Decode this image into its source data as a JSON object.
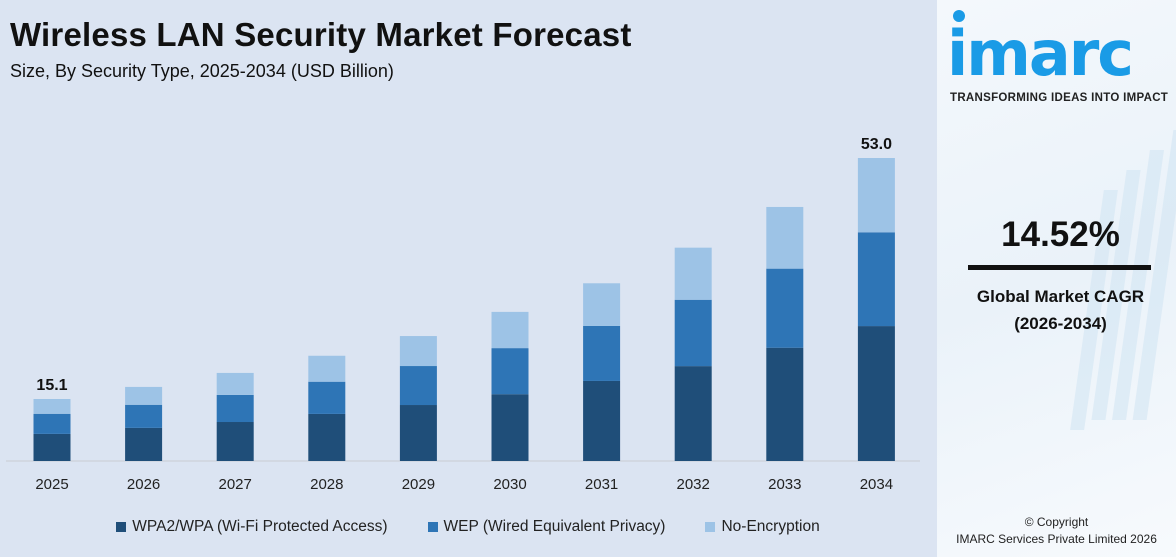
{
  "title": "Wireless LAN Security Market Forecast",
  "subtitle": "Size, By Security Type, 2025-2034 (USD Billion)",
  "chart_data": {
    "type": "bar",
    "stacked": true,
    "categories": [
      "2025",
      "2026",
      "2027",
      "2028",
      "2029",
      "2030",
      "2031",
      "2032",
      "2033",
      "2034"
    ],
    "series": [
      {
        "name": "WPA2/WPA (Wi-Fi Protected Access)",
        "color": "#1f4e79",
        "values": [
          6.6,
          7.6,
          8.5,
          9.8,
          11.2,
          12.9,
          15.0,
          17.3,
          20.2,
          23.6
        ]
      },
      {
        "name": "WEP (Wired Equivalent Privacy)",
        "color": "#2e75b6",
        "values": [
          4.9,
          5.3,
          5.9,
          6.7,
          7.8,
          8.9,
          10.3,
          12.1,
          14.1,
          16.4
        ]
      },
      {
        "name": "No-Encryption",
        "color": "#9dc3e6",
        "values": [
          3.6,
          4.1,
          4.8,
          5.4,
          6.0,
          7.0,
          8.0,
          9.5,
          11.0,
          13.0
        ]
      }
    ],
    "data_labels": {
      "2025": "15.1",
      "2034": "53.0"
    },
    "grid": false,
    "legend": "bottom",
    "xlabel": "",
    "ylabel": ""
  },
  "side": {
    "logo": "imarc",
    "tagline": "TRANSFORMING IDEAS INTO IMPACT",
    "cagr_value": "14.52%",
    "cagr_label": "Global Market CAGR",
    "cagr_period": "(2026-2034)",
    "copyright": "© Copyright",
    "company": "IMARC Services Private Limited 2026"
  }
}
